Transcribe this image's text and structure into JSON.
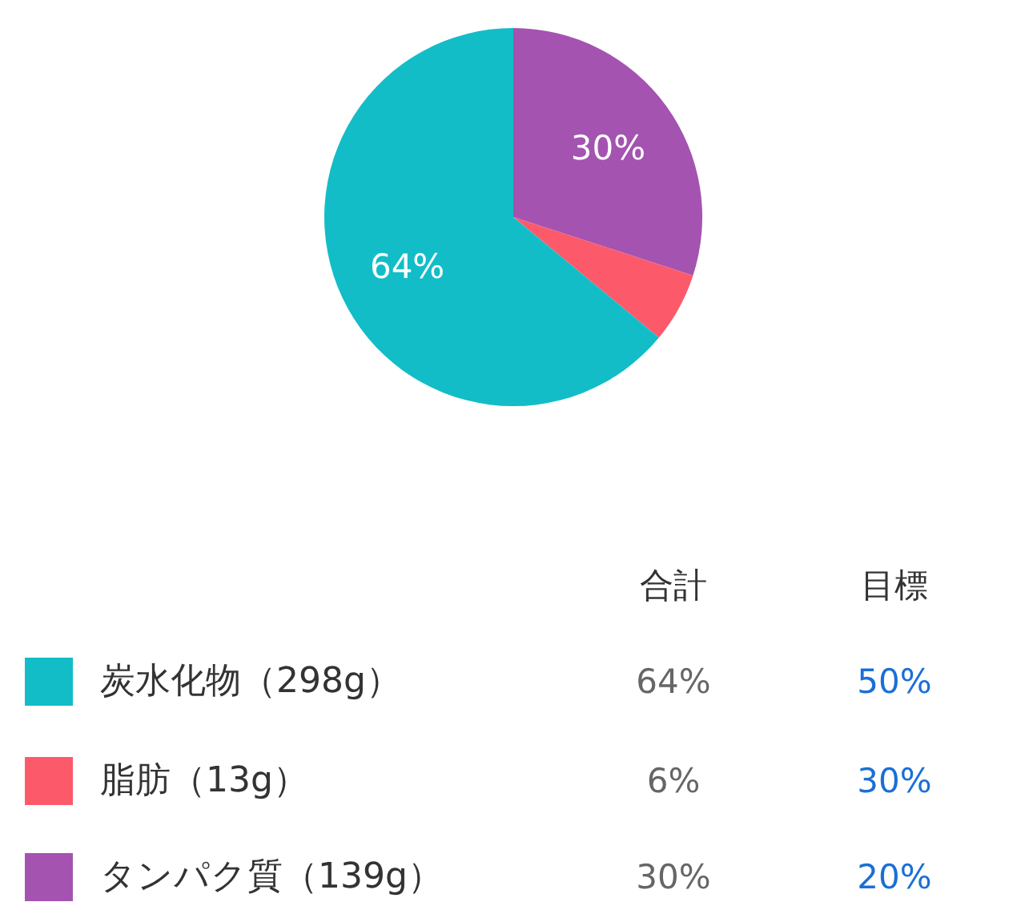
{
  "chart_data": {
    "type": "pie",
    "categories": [
      "炭水化物（298g）",
      "脂肪（13g）",
      "タンパク質（139g）"
    ],
    "values": [
      64,
      6,
      30
    ],
    "colors": [
      "#12bdc7",
      "#fc5a6b",
      "#a453b1"
    ],
    "value_labels": [
      "64%",
      "6%",
      "30%"
    ],
    "legend": "bottom",
    "annotations": [
      "合計",
      "目標",
      "50%",
      "30%",
      "20%"
    ]
  }
}
